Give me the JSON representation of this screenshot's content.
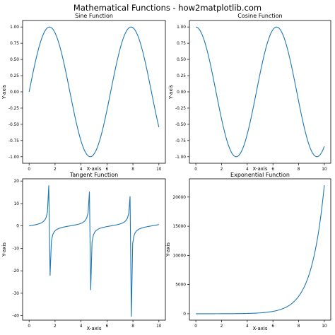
{
  "figure": {
    "suptitle": "Mathematical Functions - how2matplotlib.com",
    "line_color": "#1f77b4"
  },
  "chart_data": [
    {
      "type": "line",
      "title": "Sine Function",
      "xlabel": "X-axis",
      "ylabel": "Y-axis",
      "function": "sin",
      "x_range": [
        0,
        10
      ],
      "samples": 100,
      "xlim": [
        -0.5,
        10.5
      ],
      "ylim": [
        -1.1,
        1.1
      ],
      "xticks": [
        0,
        2,
        4,
        6,
        8,
        10
      ],
      "xtick_labels": [
        "0",
        "2",
        "4",
        "6",
        "8",
        "10"
      ],
      "yticks": [
        -1.0,
        -0.75,
        -0.5,
        -0.25,
        0.0,
        0.25,
        0.5,
        0.75,
        1.0
      ],
      "ytick_labels": [
        "-1.00",
        "-0.75",
        "-0.50",
        "-0.25",
        "0.00",
        "0.25",
        "0.50",
        "0.75",
        "1.00"
      ],
      "grid": false,
      "legend": false
    },
    {
      "type": "line",
      "title": "Cosine Function",
      "xlabel": "X-axis",
      "ylabel": "Y-axis",
      "function": "cos",
      "x_range": [
        0,
        10
      ],
      "samples": 100,
      "xlim": [
        -0.5,
        10.5
      ],
      "ylim": [
        -1.1,
        1.1
      ],
      "xticks": [
        0,
        2,
        4,
        6,
        8,
        10
      ],
      "xtick_labels": [
        "0",
        "2",
        "4",
        "6",
        "8",
        "10"
      ],
      "yticks": [
        -1.0,
        -0.75,
        -0.5,
        -0.25,
        0.0,
        0.25,
        0.5,
        0.75,
        1.0
      ],
      "ytick_labels": [
        "-1.00",
        "-0.75",
        "-0.50",
        "-0.25",
        "0.00",
        "0.25",
        "0.50",
        "0.75",
        "1.00"
      ],
      "grid": false,
      "legend": false
    },
    {
      "type": "line",
      "title": "Tangent Function",
      "xlabel": "X-axis",
      "ylabel": "Y-axis",
      "function": "tan",
      "x_range": [
        0,
        10
      ],
      "samples": 100,
      "xlim": [
        -0.5,
        10.5
      ],
      "ylim": [
        -42,
        21
      ],
      "xticks": [
        0,
        2,
        4,
        6,
        8,
        10
      ],
      "xtick_labels": [
        "0",
        "2",
        "4",
        "6",
        "8",
        "10"
      ],
      "yticks": [
        -40,
        -30,
        -20,
        -10,
        0,
        10,
        20
      ],
      "ytick_labels": [
        "-40",
        "-30",
        "-20",
        "-10",
        "0",
        "10",
        "20"
      ],
      "grid": false,
      "legend": false
    },
    {
      "type": "line",
      "title": "Exponential Function",
      "xlabel": "X-axis",
      "ylabel": "Y-axis",
      "function": "exp",
      "x_range": [
        0,
        10
      ],
      "samples": 100,
      "xlim": [
        -0.5,
        10.5
      ],
      "ylim": [
        -1100,
        23130
      ],
      "xticks": [
        0,
        2,
        4,
        6,
        8,
        10
      ],
      "xtick_labels": [
        "0",
        "2",
        "4",
        "6",
        "8",
        "10"
      ],
      "yticks": [
        0,
        5000,
        10000,
        15000,
        20000
      ],
      "ytick_labels": [
        "0",
        "5000",
        "10000",
        "15000",
        "20000"
      ],
      "grid": false,
      "legend": false
    }
  ]
}
